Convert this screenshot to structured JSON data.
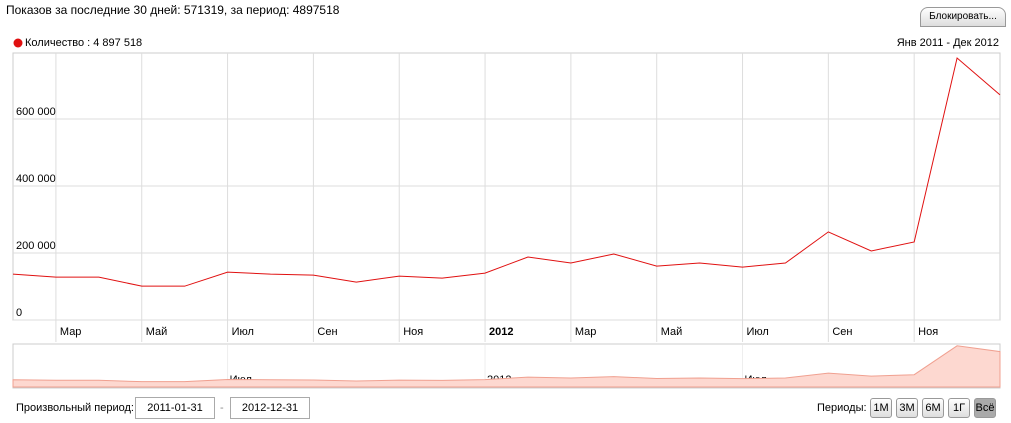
{
  "header": {
    "title": "Показов за последние 30 дней: 571319, за период: 4897518",
    "button": "Блокировать..."
  },
  "chart_data": {
    "type": "line",
    "range_label": "Янв 2011 - Дек 2012",
    "x": [
      1,
      2,
      3,
      4,
      5,
      6,
      7,
      8,
      9,
      10,
      11,
      12,
      13,
      14,
      15,
      16,
      17,
      18,
      19,
      20,
      21,
      22,
      23,
      24
    ],
    "series": [
      {
        "name": "Количество : 4 897 518",
        "color": "#e01010",
        "values": [
          137000,
          128000,
          128000,
          101000,
          101000,
          143000,
          137000,
          134000,
          113000,
          131000,
          125000,
          140000,
          188000,
          170000,
          197000,
          161000,
          170000,
          158000,
          170000,
          263000,
          206000,
          233000,
          782000,
          672000
        ]
      }
    ],
    "xlim": [
      1,
      24
    ],
    "xticks": [
      {
        "value": 2,
        "label": "Мар"
      },
      {
        "value": 4,
        "label": "Май"
      },
      {
        "value": 6,
        "label": "Июл"
      },
      {
        "value": 8,
        "label": "Сен"
      },
      {
        "value": 10,
        "label": "Ноя"
      },
      {
        "value": 12,
        "label": "2012"
      },
      {
        "value": 14,
        "label": "Мар"
      },
      {
        "value": 16,
        "label": "Май"
      },
      {
        "value": 18,
        "label": "Июл"
      },
      {
        "value": 20,
        "label": "Сен"
      },
      {
        "value": 22,
        "label": "Ноя"
      }
    ],
    "navigator_xticks": [
      {
        "value": 6,
        "label": "Июл"
      },
      {
        "value": 12,
        "label": "2012"
      },
      {
        "value": 18,
        "label": "Июл"
      }
    ],
    "ylim": [
      0,
      797000
    ],
    "yticks": [
      0,
      {
        "value": 200000,
        "label": "200 000"
      },
      {
        "value": 400000,
        "label": "400 000"
      },
      {
        "value": 600000,
        "label": "600 000"
      }
    ],
    "grid": true
  },
  "controls": {
    "custom_label": "Произвольный период:",
    "start": "2011-01-31",
    "separator": "-",
    "end": "2012-12-31",
    "periods_label": "Периоды:",
    "periods": [
      "1М",
      "3М",
      "6М",
      "1Г",
      "Всё"
    ]
  }
}
